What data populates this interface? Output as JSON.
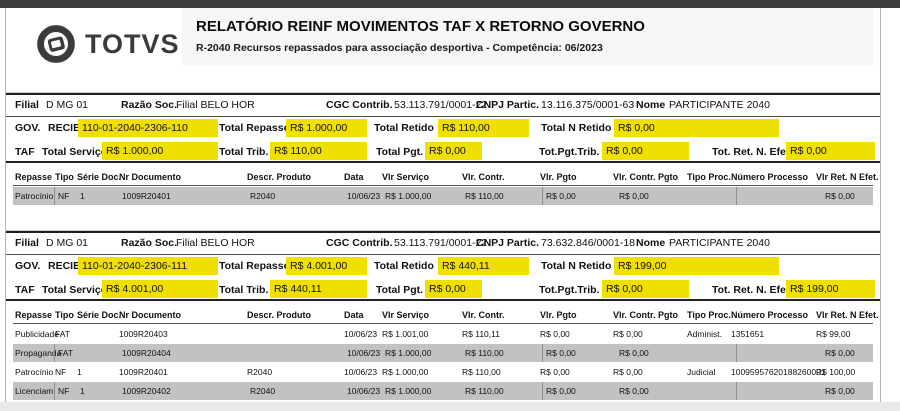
{
  "colors": {
    "highlight_yellow": "#f0e000",
    "shaded_row": "#c2c2c2",
    "topbar": "#3d3d3d",
    "title_background": "#f6f6f6"
  },
  "logo": {
    "text": "TOTVS"
  },
  "header": {
    "title": "RELATÓRIO REINF MOVIMENTOS TAF X RETORNO GOVERNO",
    "subtitle": "R-2040 Recursos repassados para associação desportiva  - Competência: 06/2023"
  },
  "labels": {
    "filial": "Filial",
    "razao_soc": "Razão Soc.",
    "cgc_contrib": "CGC Contrib.",
    "cnpj_partic": "CNPJ Partic.",
    "nome": "Nome",
    "gov": "GOV.",
    "recibo": "RECIBO",
    "total_repasse": "Total Repasse",
    "total_retido": "Total Retido",
    "total_n_retido": "Total N Retido",
    "taf": "TAF",
    "total_servico": "Total Serviço",
    "total_trib": "Total Trib.",
    "total_pgt": "Total Pgt.",
    "tot_pgt_trib": "Tot.Pgt.Trib.",
    "tot_ret_n_efet": "Tot. Ret. N. Efet."
  },
  "columns": [
    "Repasse",
    "Tipo",
    "Série Doc.",
    "Nr Documento",
    "Descr. Produto",
    "Data",
    "Vlr Serviço",
    "Vlr. Contr.",
    "Vlr. Pgto",
    "Vlr. Contr. Pgto",
    "Tipo Proc.",
    "Número Processo",
    "Vlr Ret. N Efet."
  ],
  "sections": [
    {
      "filial": "D MG 01",
      "razao_soc": "Filial BELO HOR",
      "cgc_contrib": "53.113.791/0001-22",
      "cnpj_partic": "13.116.375/0001-63",
      "nome": "PARTICIPANTE 2040",
      "recibo": "110-01-2040-2306-110",
      "total_repasse": "R$ 1.000,00",
      "total_retido": "R$ 110,00",
      "total_n_retido": "R$ 0,00",
      "total_servico": "R$ 1.000,00",
      "total_trib": "R$ 110,00",
      "total_pgt": "R$ 0,00",
      "tot_pgt_trib": "R$ 0,00",
      "tot_ret_n_efet": "R$ 0,00",
      "rows": [
        {
          "shaded": true,
          "cells": [
            "Patrocínio",
            "NF",
            "1",
            "1009R20401",
            "R2040",
            "10/06/23",
            "R$ 1.000,00",
            "R$ 110,00",
            "R$ 0,00",
            "R$ 0,00",
            "",
            "",
            "R$ 0,00"
          ]
        }
      ]
    },
    {
      "filial": "D MG 01",
      "razao_soc": "Filial BELO HOR",
      "cgc_contrib": "53.113.791/0001-22",
      "cnpj_partic": "73.632.846/0001-18",
      "nome": "PARTICIPANTE 2040",
      "recibo": "110-01-2040-2306-111",
      "total_repasse": "R$ 4.001,00",
      "total_retido": "R$ 440,11",
      "total_n_retido": "R$ 199,00",
      "total_servico": "R$ 4.001,00",
      "total_trib": "R$ 440,11",
      "total_pgt": "R$ 0,00",
      "tot_pgt_trib": "R$ 0,00",
      "tot_ret_n_efet": "R$ 199,00",
      "rows": [
        {
          "shaded": false,
          "cells": [
            "Publicidade",
            "FAT",
            "",
            "1009R20403",
            "",
            "10/06/23",
            "R$ 1.001,00",
            "R$ 110,11",
            "R$ 0,00",
            "R$ 0,00",
            "Administ.",
            "1351651",
            "R$ 99,00"
          ]
        },
        {
          "shaded": true,
          "cells": [
            "Propaganda",
            "FAT",
            "",
            "1009R20404",
            "",
            "10/06/23",
            "R$ 1.000,00",
            "R$ 110,00",
            "R$ 0,00",
            "R$ 0,00",
            "",
            "",
            "R$ 0,00"
          ]
        },
        {
          "shaded": false,
          "cells": [
            "Patrocínio",
            "NF",
            "1",
            "1009R20401",
            "R2040",
            "10/06/23",
            "R$ 1.000,00",
            "R$ 110,00",
            "R$ 0,00",
            "R$ 0,00",
            "Judicial",
            "10095957620188260001",
            "R$ 100,00"
          ]
        },
        {
          "shaded": true,
          "cells": [
            "Licenciam.",
            "NF",
            "1",
            "1009R20402",
            "R2040",
            "10/06/23",
            "R$ 1.000,00",
            "R$ 110,00",
            "R$ 0,00",
            "R$ 0,00",
            "",
            "",
            "R$ 0,00"
          ]
        }
      ]
    }
  ]
}
